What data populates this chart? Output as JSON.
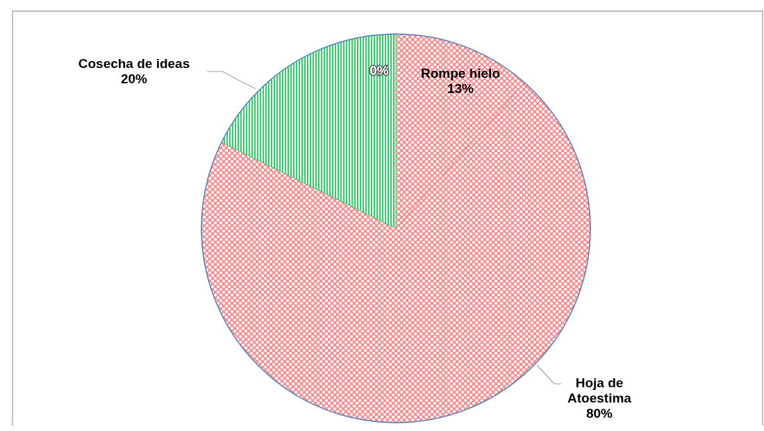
{
  "chart_data": {
    "type": "pie",
    "categories": [
      null,
      "Rompe hielo",
      "Hoja de Atoestima",
      "Cosecha de ideas"
    ],
    "values": [
      0,
      13,
      80,
      20
    ],
    "value_labels": [
      "0%",
      "13%",
      "80%",
      "20%"
    ],
    "colors": [
      "#4f81bd",
      "#ff7c80",
      "#ff7c80",
      "#33cc66"
    ]
  }
}
